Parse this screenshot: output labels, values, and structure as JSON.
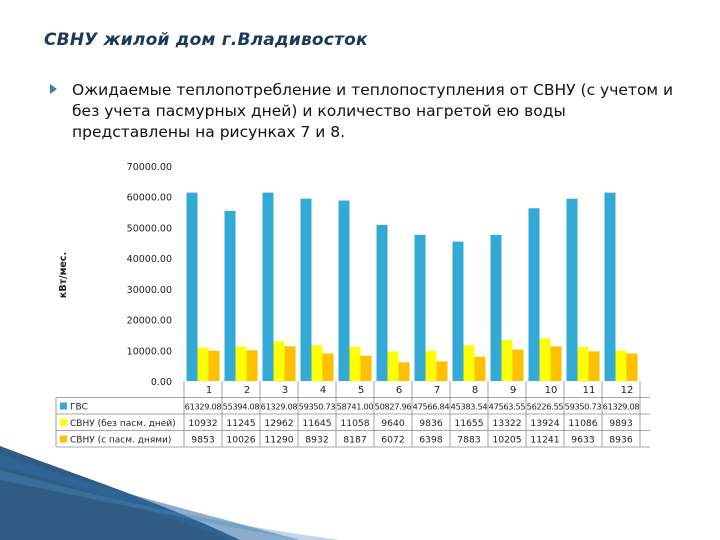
{
  "slide": {
    "title": "СВНУ  жилой дом г.Владивосток",
    "bullet": "Ожидаемые теплопотребление и теплопоступления от СВНУ (с учетом и без учета пасмурных дней) и количество нагретой ею воды представлены на рисунках 7 и 8."
  },
  "chart_data": {
    "type": "bar",
    "ylabel": "кВт/мес.",
    "ylim": [
      0,
      70000
    ],
    "yticks": [
      "0.00",
      "10000.00",
      "20000.00",
      "30000.00",
      "40000.00",
      "50000.00",
      "60000.00",
      "70000.00"
    ],
    "yticks_values": [
      0,
      10000,
      20000,
      30000,
      40000,
      50000,
      60000,
      70000
    ],
    "categories": [
      "1",
      "2",
      "3",
      "4",
      "5",
      "6",
      "7",
      "8",
      "9",
      "10",
      "11",
      "12"
    ],
    "grid": false,
    "legend": "data-table",
    "series": [
      {
        "name": "ГВС",
        "color": "#33a9d6",
        "values": [
          61329.08,
          55394.08,
          61329.08,
          59350.73,
          58741.0,
          50827.96,
          47566.84,
          45383.54,
          47563.55,
          56226.55,
          59350.73,
          61329.08
        ],
        "labels": [
          "61329.08",
          "55394.08",
          "61329.08",
          "59350.73",
          "58741.00",
          "50827.96",
          "47566.84",
          "45383.54",
          "47563.55",
          "56226.55",
          "59350.73",
          "61329.08"
        ]
      },
      {
        "name": "СВНУ (без пасм. дней)",
        "color": "#ffff00",
        "values": [
          10932,
          11245,
          12962,
          11645,
          11058,
          9640,
          9836,
          11655,
          13322,
          13924,
          11086,
          9893
        ],
        "labels": [
          "10932",
          "11245",
          "12962",
          "11645",
          "11058",
          "9640",
          "9836",
          "11655",
          "13322",
          "13924",
          "11086",
          "9893"
        ]
      },
      {
        "name": "СВНУ (с пасм. днями)",
        "color": "#ffc000",
        "values": [
          9853,
          10026,
          11290,
          8932,
          8187,
          6072,
          6398,
          7883,
          10205,
          11241,
          9633,
          8936
        ],
        "labels": [
          "9853",
          "10026",
          "11290",
          "8932",
          "8187",
          "6072",
          "6398",
          "7883",
          "10205",
          "11241",
          "9633",
          "8936"
        ]
      }
    ]
  },
  "colors": {
    "title": "#1a3a5c",
    "bullet": "#3c7fa6",
    "decor": "#1e4e79"
  }
}
